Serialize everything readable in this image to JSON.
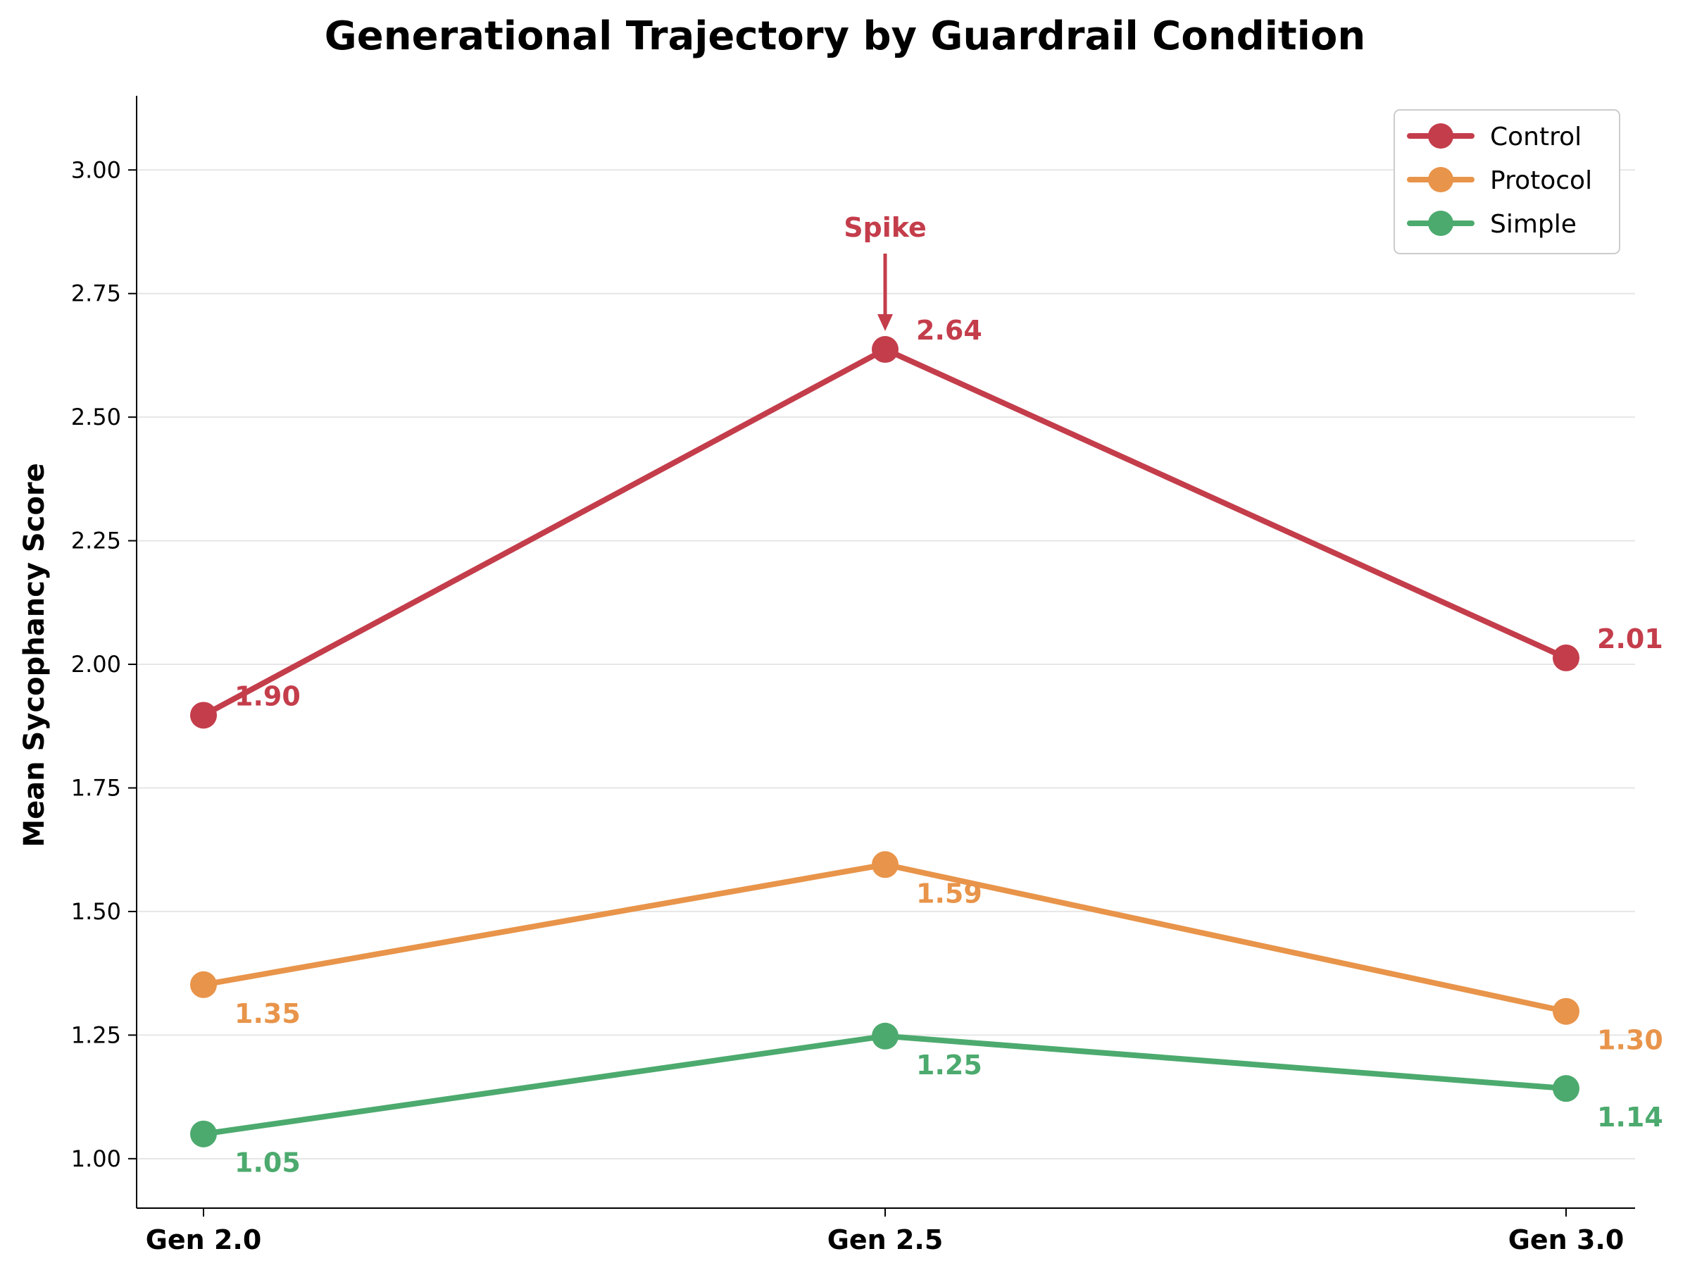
{
  "chart_data": {
    "type": "line",
    "title": "Generational Trajectory by Guardrail Condition",
    "xlabel": "",
    "ylabel": "Mean Sycophancy Score",
    "categories": [
      "Gen 2.0",
      "Gen 2.5",
      "Gen 3.0"
    ],
    "ylim": [
      0.9,
      3.15
    ],
    "yticks": [
      1.0,
      1.25,
      1.5,
      1.75,
      2.0,
      2.25,
      2.5,
      2.75,
      3.0
    ],
    "ytick_labels": [
      "1.00",
      "1.25",
      "1.50",
      "1.75",
      "2.00",
      "2.25",
      "2.50",
      "2.75",
      "3.00"
    ],
    "grid": "horizontal",
    "legend": "top-right",
    "series": [
      {
        "name": "Control",
        "values": [
          1.897,
          2.637,
          2.013
        ],
        "labels": [
          "1.90",
          "2.64",
          "2.01"
        ],
        "color": "#c43d4b",
        "label_position": "above"
      },
      {
        "name": "Protocol",
        "values": [
          1.352,
          1.595,
          1.298
        ],
        "labels": [
          "1.35",
          "1.59",
          "1.30"
        ],
        "color": "#e8944a",
        "label_position": "below"
      },
      {
        "name": "Simple",
        "values": [
          1.05,
          1.248,
          1.142
        ],
        "labels": [
          "1.05",
          "1.25",
          "1.14"
        ],
        "color": "#4caa6e",
        "label_position": "below"
      }
    ],
    "annotations": [
      {
        "text": "Spike",
        "series": "Control",
        "category": "Gen 2.5",
        "color": "#c43d4b"
      }
    ]
  }
}
